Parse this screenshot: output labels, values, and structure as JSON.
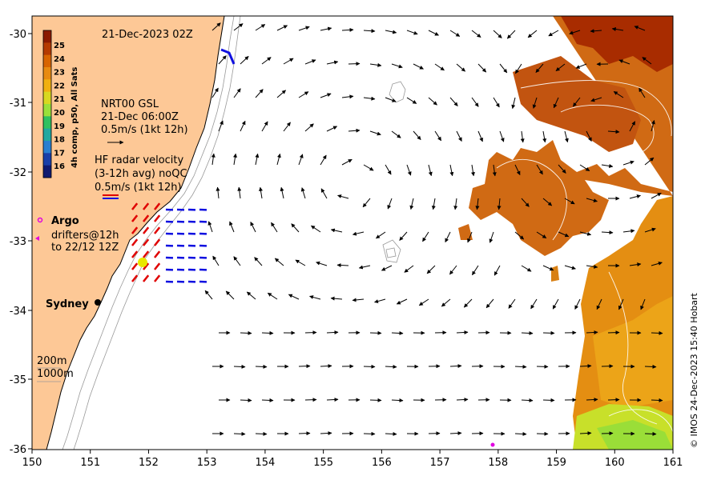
{
  "map": {
    "date_title": "21-Dec-2023 02Z",
    "credit": "© IMOS 24-Dec-2023 15:40 Hobart",
    "x_ticks": [
      "150",
      "151",
      "152",
      "153",
      "154",
      "155",
      "156",
      "157",
      "158",
      "159",
      "160",
      "161"
    ],
    "y_ticks": [
      "-30",
      "-31",
      "-32",
      "-33",
      "-34",
      "-35",
      "-36"
    ],
    "lon_range": [
      150,
      161
    ],
    "lat_range": [
      -36,
      -29.8
    ]
  },
  "colorbar": {
    "label": "4h comp, p50, All Sats",
    "ticks": [
      "25",
      "24",
      "23",
      "22",
      "21",
      "20",
      "19",
      "18",
      "17",
      "16"
    ],
    "colors": [
      "#8b1a00",
      "#b53a00",
      "#d86400",
      "#e88a10",
      "#f0b010",
      "#d8d820",
      "#9ae03a",
      "#30c060",
      "#20a8a0",
      "#2a7fd0",
      "#1a3fa8",
      "#101a70"
    ]
  },
  "legend": {
    "gsl_title": "NRT00 GSL",
    "gsl_time": "21-Dec 06:00Z",
    "gsl_scale": "0.5m/s (1kt 12h)",
    "hf_title": "HF radar velocity",
    "hf_avg": "(3-12h avg) noQC",
    "hf_scale": "0.5m/s (1kt 12h)",
    "argo": "Argo",
    "drifters_line1": "drifters@12h",
    "drifters_line2": "to 22/12 12Z",
    "city": "Sydney",
    "depth_200": "200m",
    "depth_1000": "1000m"
  },
  "colors": {
    "land": "#fdc896",
    "ocean": "#ffffff",
    "radar_red": "#e00000",
    "radar_blue": "#1010e0",
    "argo": "#e000e0"
  }
}
